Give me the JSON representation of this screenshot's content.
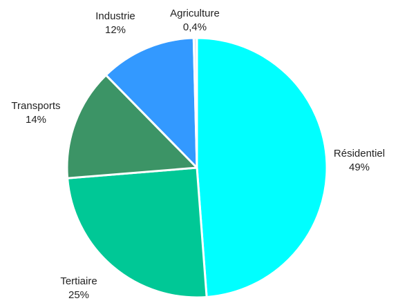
{
  "chart_data": {
    "type": "pie",
    "title": "",
    "start_angle_deg": 0,
    "direction": "clockwise",
    "slices": [
      {
        "name": "Résidentiel",
        "label": "49%",
        "value": 49,
        "color": "#00FFFF"
      },
      {
        "name": "Tertiaire",
        "label": "25%",
        "value": 25,
        "color": "#00C896"
      },
      {
        "name": "Transports",
        "label": "14%",
        "value": 14,
        "color": "#3C9466"
      },
      {
        "name": "Industrie",
        "label": "12%",
        "value": 12,
        "color": "#3399FF"
      },
      {
        "name": "Agriculture",
        "label": "0,4%",
        "value": 0.4,
        "color": "#DCE6F2"
      }
    ],
    "legend": "none",
    "label_position": "outside"
  }
}
